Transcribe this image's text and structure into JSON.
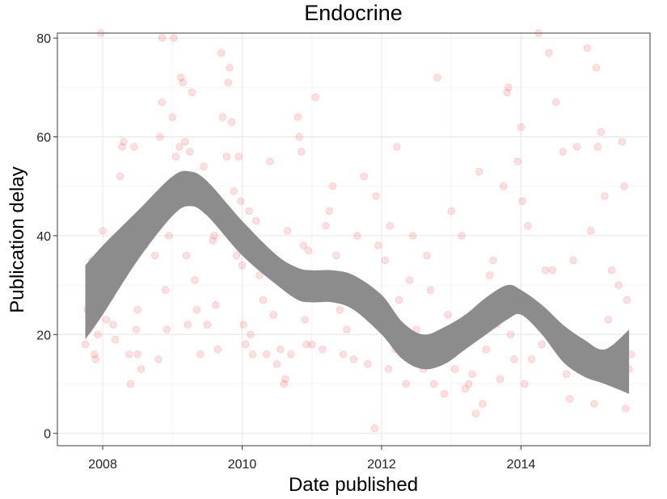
{
  "chart_data": {
    "type": "scatter",
    "title": "Endocrine",
    "xlabel": "Date published",
    "ylabel": "Publication delay",
    "xlim": [
      2007.35,
      2015.85
    ],
    "ylim": [
      -2.5,
      81
    ],
    "x_ticks": [
      2008,
      2010,
      2012,
      2014
    ],
    "x_tick_labels": [
      "2008",
      "2010",
      "2012",
      "2014"
    ],
    "y_ticks": [
      0,
      20,
      40,
      60,
      80
    ],
    "y_tick_labels": [
      "0",
      "20",
      "40",
      "60",
      "80"
    ],
    "grid": true,
    "point_color": "#ff0000",
    "point_alpha": 0.12,
    "band_color": "#8c8c8c",
    "smooth": {
      "x": [
        2007.75,
        2008.0,
        2008.5,
        2009.0,
        2009.25,
        2009.5,
        2010.0,
        2010.5,
        2010.8,
        2011.0,
        2011.3,
        2011.6,
        2012.0,
        2012.3,
        2012.6,
        2012.9,
        2013.2,
        2013.5,
        2013.8,
        2014.0,
        2014.3,
        2014.6,
        2014.9,
        2015.2,
        2015.55
      ],
      "upper": [
        34,
        38,
        45,
        52,
        53,
        51,
        43,
        36,
        33.5,
        33,
        33,
        32,
        28,
        22.5,
        20,
        21.5,
        24,
        27.5,
        30,
        29,
        26,
        22,
        19,
        17,
        21
      ],
      "lower": [
        19,
        24,
        35,
        44,
        46,
        44,
        36,
        30,
        27,
        26.5,
        26.5,
        25,
        20,
        15,
        13,
        14,
        17,
        20,
        23,
        24,
        20,
        14.5,
        11.5,
        10,
        8
      ]
    },
    "points": [
      [
        2007.75,
        18
      ],
      [
        2007.78,
        25
      ],
      [
        2007.8,
        21
      ],
      [
        2007.85,
        35
      ],
      [
        2007.88,
        16
      ],
      [
        2007.9,
        15
      ],
      [
        2007.93,
        20
      ],
      [
        2007.95,
        29
      ],
      [
        2007.98,
        30
      ],
      [
        2008.0,
        41
      ],
      [
        2007.97,
        81
      ],
      [
        2008.05,
        23
      ],
      [
        2008.1,
        31
      ],
      [
        2008.15,
        22
      ],
      [
        2008.18,
        19
      ],
      [
        2008.2,
        36
      ],
      [
        2008.25,
        52
      ],
      [
        2008.28,
        58
      ],
      [
        2008.3,
        59
      ],
      [
        2008.33,
        34
      ],
      [
        2008.38,
        16
      ],
      [
        2008.4,
        10
      ],
      [
        2008.45,
        58
      ],
      [
        2008.48,
        21
      ],
      [
        2008.5,
        25
      ],
      [
        2008.5,
        16
      ],
      [
        2008.55,
        13
      ],
      [
        2008.6,
        38
      ],
      [
        2008.7,
        44
      ],
      [
        2008.75,
        36
      ],
      [
        2008.8,
        15
      ],
      [
        2008.82,
        60
      ],
      [
        2008.85,
        67
      ],
      [
        2008.85,
        80
      ],
      [
        2008.9,
        29
      ],
      [
        2008.92,
        21
      ],
      [
        2008.95,
        40
      ],
      [
        2009.0,
        64
      ],
      [
        2009.02,
        80
      ],
      [
        2009.05,
        56
      ],
      [
        2009.08,
        47
      ],
      [
        2009.1,
        58
      ],
      [
        2009.12,
        72
      ],
      [
        2009.15,
        71
      ],
      [
        2009.18,
        59
      ],
      [
        2009.2,
        36
      ],
      [
        2009.22,
        22
      ],
      [
        2009.25,
        57
      ],
      [
        2009.28,
        69
      ],
      [
        2009.3,
        50
      ],
      [
        2009.32,
        31
      ],
      [
        2009.35,
        25
      ],
      [
        2009.4,
        16
      ],
      [
        2009.45,
        54
      ],
      [
        2009.5,
        22
      ],
      [
        2009.55,
        45
      ],
      [
        2009.58,
        39
      ],
      [
        2009.6,
        40
      ],
      [
        2009.62,
        26
      ],
      [
        2009.65,
        17
      ],
      [
        2009.7,
        77
      ],
      [
        2009.72,
        64
      ],
      [
        2009.75,
        44
      ],
      [
        2009.78,
        56
      ],
      [
        2009.8,
        71
      ],
      [
        2009.82,
        74
      ],
      [
        2009.85,
        63
      ],
      [
        2009.88,
        49
      ],
      [
        2009.9,
        43
      ],
      [
        2009.92,
        36
      ],
      [
        2009.95,
        56
      ],
      [
        2009.98,
        47
      ],
      [
        2010.0,
        34
      ],
      [
        2010.02,
        22
      ],
      [
        2010.05,
        18
      ],
      [
        2010.1,
        45
      ],
      [
        2010.12,
        20
      ],
      [
        2010.15,
        16
      ],
      [
        2010.2,
        43
      ],
      [
        2010.25,
        32
      ],
      [
        2010.3,
        27
      ],
      [
        2010.35,
        16
      ],
      [
        2010.4,
        55
      ],
      [
        2010.45,
        24
      ],
      [
        2010.5,
        14
      ],
      [
        2010.55,
        17
      ],
      [
        2010.6,
        10
      ],
      [
        2010.62,
        11
      ],
      [
        2010.65,
        41
      ],
      [
        2010.7,
        16
      ],
      [
        2010.75,
        32
      ],
      [
        2010.8,
        64
      ],
      [
        2010.82,
        60
      ],
      [
        2010.85,
        57
      ],
      [
        2010.88,
        38
      ],
      [
        2010.9,
        23
      ],
      [
        2010.92,
        18
      ],
      [
        2010.95,
        37
      ],
      [
        2011.0,
        18
      ],
      [
        2011.05,
        68
      ],
      [
        2011.1,
        29
      ],
      [
        2011.15,
        17
      ],
      [
        2011.2,
        42
      ],
      [
        2011.25,
        45
      ],
      [
        2011.3,
        50
      ],
      [
        2011.35,
        36
      ],
      [
        2011.4,
        25
      ],
      [
        2011.45,
        16
      ],
      [
        2011.5,
        21
      ],
      [
        2011.55,
        29
      ],
      [
        2011.6,
        15
      ],
      [
        2011.65,
        40
      ],
      [
        2011.7,
        25
      ],
      [
        2011.75,
        52
      ],
      [
        2011.8,
        14
      ],
      [
        2011.85,
        26
      ],
      [
        2011.88,
        23
      ],
      [
        2011.9,
        1
      ],
      [
        2011.92,
        48
      ],
      [
        2011.95,
        38
      ],
      [
        2012.0,
        22
      ],
      [
        2012.05,
        35
      ],
      [
        2012.1,
        13
      ],
      [
        2012.12,
        42
      ],
      [
        2012.15,
        24
      ],
      [
        2012.2,
        17
      ],
      [
        2012.22,
        58
      ],
      [
        2012.25,
        27
      ],
      [
        2012.3,
        18
      ],
      [
        2012.35,
        10
      ],
      [
        2012.4,
        31
      ],
      [
        2012.45,
        40
      ],
      [
        2012.5,
        21
      ],
      [
        2012.55,
        14
      ],
      [
        2012.6,
        13
      ],
      [
        2012.65,
        36
      ],
      [
        2012.7,
        29
      ],
      [
        2012.75,
        10
      ],
      [
        2012.8,
        72
      ],
      [
        2012.85,
        16
      ],
      [
        2012.9,
        8
      ],
      [
        2012.95,
        24
      ],
      [
        2013.0,
        45
      ],
      [
        2013.05,
        13
      ],
      [
        2013.1,
        17
      ],
      [
        2013.15,
        40
      ],
      [
        2013.2,
        9
      ],
      [
        2013.25,
        10
      ],
      [
        2013.3,
        12
      ],
      [
        2013.35,
        4
      ],
      [
        2013.4,
        53
      ],
      [
        2013.45,
        6
      ],
      [
        2013.5,
        17
      ],
      [
        2013.55,
        32
      ],
      [
        2013.6,
        35
      ],
      [
        2013.65,
        22
      ],
      [
        2013.7,
        11
      ],
      [
        2013.75,
        50
      ],
      [
        2013.8,
        69
      ],
      [
        2013.82,
        70
      ],
      [
        2013.85,
        20
      ],
      [
        2013.9,
        15
      ],
      [
        2013.95,
        55
      ],
      [
        2014.0,
        62
      ],
      [
        2014.02,
        47
      ],
      [
        2014.05,
        10
      ],
      [
        2014.1,
        42
      ],
      [
        2014.15,
        15
      ],
      [
        2014.2,
        23
      ],
      [
        2014.25,
        81
      ],
      [
        2014.3,
        18
      ],
      [
        2014.35,
        33
      ],
      [
        2014.4,
        77
      ],
      [
        2014.45,
        33
      ],
      [
        2014.5,
        67
      ],
      [
        2014.55,
        20
      ],
      [
        2014.6,
        57
      ],
      [
        2014.65,
        12
      ],
      [
        2014.7,
        7
      ],
      [
        2014.75,
        35
      ],
      [
        2014.8,
        58
      ],
      [
        2014.85,
        18
      ],
      [
        2014.9,
        13
      ],
      [
        2014.95,
        78
      ],
      [
        2015.0,
        41
      ],
      [
        2015.05,
        6
      ],
      [
        2015.08,
        74
      ],
      [
        2015.1,
        58
      ],
      [
        2015.15,
        61
      ],
      [
        2015.2,
        48
      ],
      [
        2015.25,
        23
      ],
      [
        2015.3,
        33
      ],
      [
        2015.35,
        10
      ],
      [
        2015.4,
        30
      ],
      [
        2015.45,
        59
      ],
      [
        2015.48,
        50
      ],
      [
        2015.5,
        5
      ],
      [
        2015.52,
        27
      ],
      [
        2015.55,
        13
      ],
      [
        2015.58,
        16
      ]
    ]
  }
}
